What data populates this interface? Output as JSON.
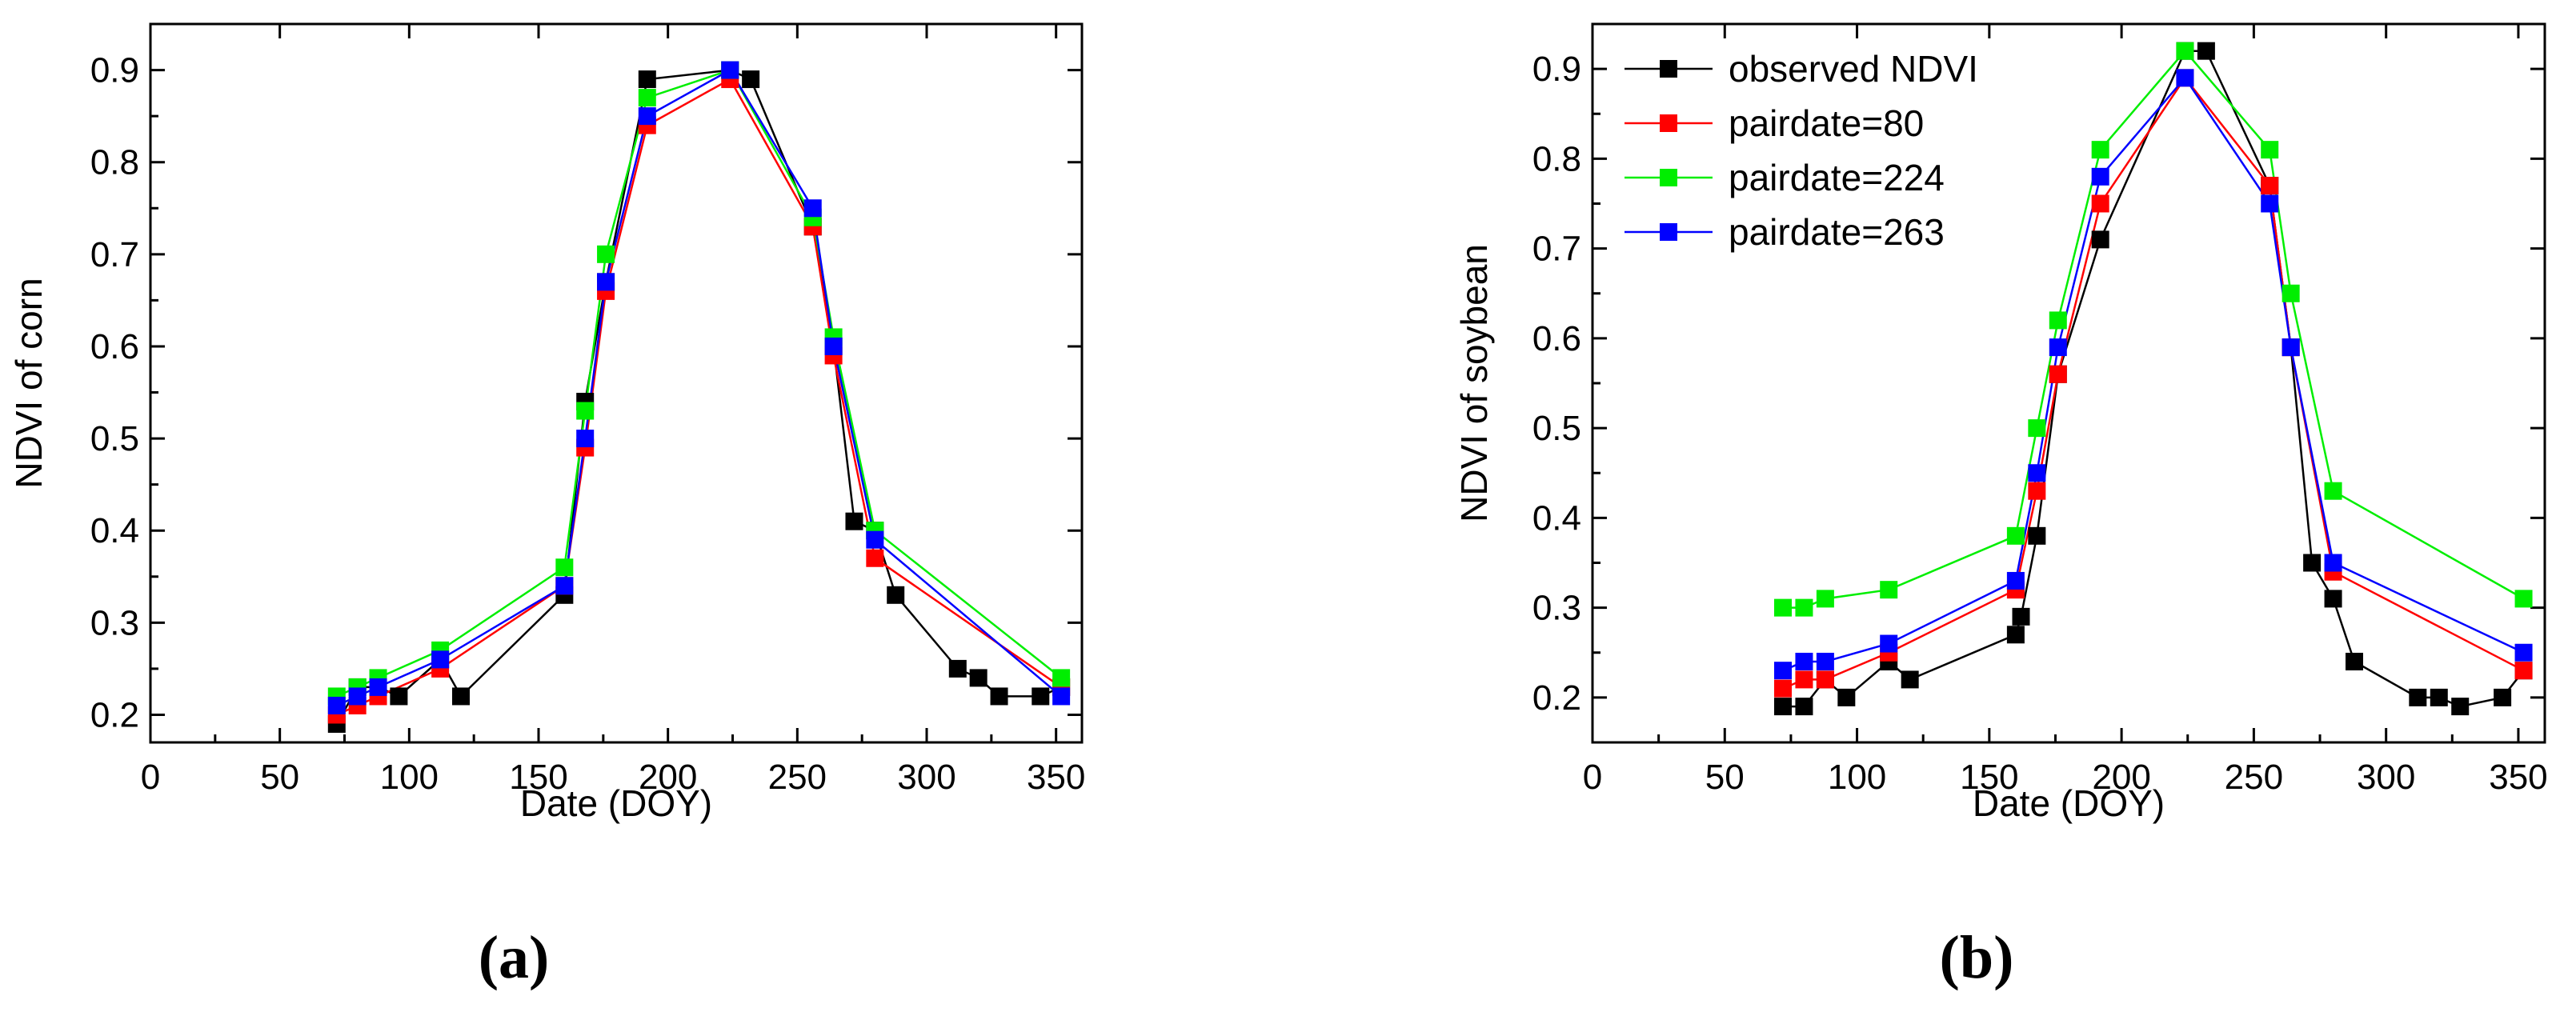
{
  "figure": {
    "panels": [
      "a",
      "b"
    ]
  },
  "chart_data": [
    {
      "panel_label": "(a)",
      "type": "line",
      "title": "",
      "xlabel": "Date (DOY)",
      "ylabel": "NDVI of corn",
      "xlim": [
        0,
        360
      ],
      "ylim": [
        0.17,
        0.95
      ],
      "xticks": [
        0,
        50,
        100,
        150,
        200,
        250,
        300,
        350
      ],
      "yticks": [
        0.2,
        0.3,
        0.4,
        0.5,
        0.6,
        0.7,
        0.8,
        0.9
      ],
      "legend": false,
      "series": [
        {
          "name": "observed NDVI",
          "color": "#000000",
          "x": [
            72,
            80,
            88,
            96,
            112,
            120,
            160,
            168,
            176,
            192,
            224,
            232,
            256,
            264,
            272,
            280,
            288,
            312,
            320,
            328,
            344,
            352
          ],
          "y": [
            0.19,
            0.23,
            0.23,
            0.22,
            0.26,
            0.22,
            0.33,
            0.54,
            0.67,
            0.89,
            0.9,
            0.89,
            0.73,
            0.6,
            0.41,
            0.4,
            0.33,
            0.25,
            0.24,
            0.22,
            0.22,
            0.23
          ]
        },
        {
          "name": "pairdate=80",
          "color": "#ff0000",
          "x": [
            72,
            80,
            88,
            112,
            160,
            168,
            176,
            192,
            224,
            256,
            264,
            280,
            352
          ],
          "y": [
            0.2,
            0.21,
            0.22,
            0.25,
            0.34,
            0.49,
            0.66,
            0.84,
            0.89,
            0.73,
            0.59,
            0.37,
            0.23
          ]
        },
        {
          "name": "pairdate=224",
          "color": "#00ee00",
          "x": [
            72,
            80,
            88,
            112,
            160,
            168,
            176,
            192,
            224,
            256,
            264,
            280,
            352
          ],
          "y": [
            0.22,
            0.23,
            0.24,
            0.27,
            0.36,
            0.53,
            0.7,
            0.87,
            0.9,
            0.74,
            0.61,
            0.4,
            0.24
          ]
        },
        {
          "name": "pairdate=263",
          "color": "#0000ff",
          "x": [
            72,
            80,
            88,
            112,
            160,
            168,
            176,
            192,
            224,
            256,
            264,
            280,
            352
          ],
          "y": [
            0.21,
            0.22,
            0.23,
            0.26,
            0.34,
            0.5,
            0.67,
            0.85,
            0.9,
            0.75,
            0.6,
            0.39,
            0.22
          ]
        }
      ]
    },
    {
      "panel_label": "(b)",
      "type": "line",
      "title": "",
      "xlabel": "Date (DOY)",
      "ylabel": "NDVI of soybean",
      "xlim": [
        0,
        360
      ],
      "ylim": [
        0.15,
        0.95
      ],
      "xticks": [
        0,
        50,
        100,
        150,
        200,
        250,
        300,
        350
      ],
      "yticks": [
        0.2,
        0.3,
        0.4,
        0.5,
        0.6,
        0.7,
        0.8,
        0.9
      ],
      "legend": true,
      "legend_position": "top-left",
      "series": [
        {
          "name": "observed NDVI",
          "color": "#000000",
          "x": [
            72,
            80,
            88,
            96,
            112,
            120,
            160,
            162,
            168,
            176,
            192,
            224,
            232,
            256,
            264,
            272,
            280,
            288,
            312,
            320,
            328,
            344,
            352
          ],
          "y": [
            0.19,
            0.19,
            0.22,
            0.2,
            0.24,
            0.22,
            0.27,
            0.29,
            0.38,
            0.56,
            0.71,
            0.92,
            0.92,
            0.77,
            0.59,
            0.35,
            0.31,
            0.24,
            0.2,
            0.2,
            0.19,
            0.2,
            0.23
          ]
        },
        {
          "name": "pairdate=80",
          "color": "#ff0000",
          "x": [
            72,
            80,
            88,
            112,
            160,
            168,
            176,
            192,
            224,
            256,
            264,
            280,
            352
          ],
          "y": [
            0.21,
            0.22,
            0.22,
            0.25,
            0.32,
            0.43,
            0.56,
            0.75,
            0.89,
            0.77,
            0.59,
            0.34,
            0.23
          ]
        },
        {
          "name": "pairdate=224",
          "color": "#00ee00",
          "x": [
            72,
            80,
            88,
            112,
            160,
            168,
            176,
            192,
            224,
            256,
            264,
            280,
            352
          ],
          "y": [
            0.3,
            0.3,
            0.31,
            0.32,
            0.38,
            0.5,
            0.62,
            0.81,
            0.92,
            0.81,
            0.65,
            0.43,
            0.31
          ]
        },
        {
          "name": "pairdate=263",
          "color": "#0000ff",
          "x": [
            72,
            80,
            88,
            112,
            160,
            168,
            176,
            192,
            224,
            256,
            264,
            280,
            352
          ],
          "y": [
            0.23,
            0.24,
            0.24,
            0.26,
            0.33,
            0.45,
            0.59,
            0.78,
            0.89,
            0.75,
            0.59,
            0.35,
            0.25
          ]
        }
      ]
    }
  ]
}
